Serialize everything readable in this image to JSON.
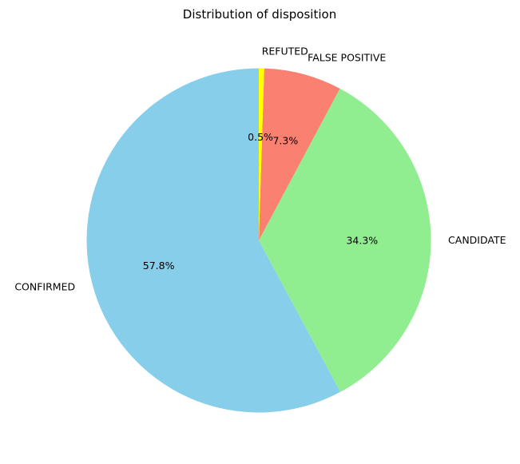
{
  "chart_data": {
    "type": "pie",
    "title": "Distribution of disposition",
    "start_angle_deg": 90,
    "direction": "counterclockwise",
    "slices": [
      {
        "label": "CONFIRMED",
        "value": 57.8,
        "pct_text": "57.8%",
        "color": "#87CEEB"
      },
      {
        "label": "CANDIDATE",
        "value": 34.3,
        "pct_text": "34.3%",
        "color": "#90EE90"
      },
      {
        "label": "FALSE POSITIVE",
        "value": 7.3,
        "pct_text": "7.3%",
        "color": "#FA8072"
      },
      {
        "label": "REFUTED",
        "value": 0.5,
        "pct_text": "0.5%",
        "color": "#FFFF00"
      }
    ]
  }
}
